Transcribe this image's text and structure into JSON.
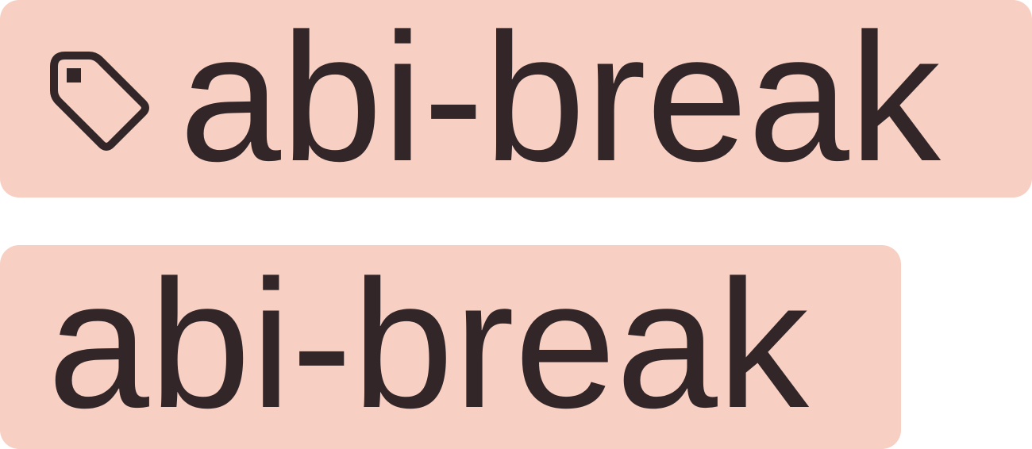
{
  "colors": {
    "label_background": "#f7cfc3",
    "label_text": "#332628"
  },
  "labels": [
    {
      "text": "abi-break",
      "icon": "tag-icon"
    },
    {
      "text": "abi-break"
    }
  ]
}
